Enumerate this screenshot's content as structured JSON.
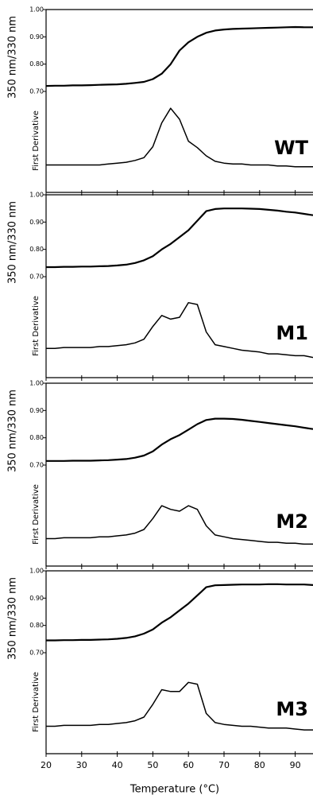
{
  "chart_data": [
    {
      "type": "line",
      "label": "WT",
      "ylabel": "350 nm/330 nm",
      "y2label": "First Derivative",
      "x": [
        20,
        22.5,
        25,
        27.5,
        30,
        32.5,
        35,
        37.5,
        40,
        42.5,
        45,
        47.5,
        50,
        52.5,
        55,
        57.5,
        60,
        62.5,
        65,
        67.5,
        70,
        72.5,
        75,
        77.5,
        80,
        82.5,
        85,
        87.5,
        90,
        92.5,
        95
      ],
      "xlim": [
        20,
        95
      ],
      "xticks": [
        20,
        30,
        40,
        50,
        60,
        70,
        80,
        90
      ],
      "ylim": [
        0.33,
        1.0
      ],
      "yticks": [
        {
          "value": 0.7,
          "label": "0.70"
        },
        {
          "value": 0.8,
          "label": "0.80"
        },
        {
          "value": 0.9,
          "label": "0.90"
        },
        {
          "value": 1.0,
          "label": "1.00"
        }
      ],
      "y2lim": [
        0,
        1
      ],
      "series": [
        {
          "color": "#000000",
          "values": [
            0.72,
            0.721,
            0.721,
            0.722,
            0.722,
            0.723,
            0.724,
            0.725,
            0.726,
            0.728,
            0.731,
            0.735,
            0.745,
            0.765,
            0.8,
            0.85,
            0.88,
            0.9,
            0.915,
            0.923,
            0.927,
            0.929,
            0.93,
            0.931,
            0.932,
            0.933,
            0.934,
            0.935,
            0.936,
            0.935,
            0.935
          ]
        },
        {
          "color": "#000000",
          "axis": "y2",
          "values": [
            0.15,
            0.15,
            0.15,
            0.15,
            0.15,
            0.15,
            0.15,
            0.155,
            0.16,
            0.165,
            0.175,
            0.19,
            0.25,
            0.38,
            0.46,
            0.4,
            0.28,
            0.245,
            0.2,
            0.17,
            0.16,
            0.155,
            0.155,
            0.15,
            0.15,
            0.15,
            0.145,
            0.145,
            0.14,
            0.14,
            0.14
          ]
        }
      ]
    },
    {
      "type": "line",
      "label": "M1",
      "ylabel": "350 nm/330 nm",
      "y2label": "First Derivative",
      "x": [
        20,
        22.5,
        25,
        27.5,
        30,
        32.5,
        35,
        37.5,
        40,
        42.5,
        45,
        47.5,
        50,
        52.5,
        55,
        57.5,
        60,
        62.5,
        65,
        67.5,
        70,
        72.5,
        75,
        77.5,
        80,
        82.5,
        85,
        87.5,
        90,
        92.5,
        95
      ],
      "xlim": [
        20,
        95
      ],
      "xticks": [
        20,
        30,
        40,
        50,
        60,
        70,
        80,
        90
      ],
      "ylim": [
        0.33,
        1.0
      ],
      "yticks": [
        {
          "value": 0.7,
          "label": "0.70"
        },
        {
          "value": 0.8,
          "label": "0.80"
        },
        {
          "value": 0.9,
          "label": "0.90"
        },
        {
          "value": 1.0,
          "label": "1.00"
        }
      ],
      "y2lim": [
        0,
        1
      ],
      "series": [
        {
          "color": "#000000",
          "values": [
            0.735,
            0.735,
            0.736,
            0.736,
            0.737,
            0.737,
            0.738,
            0.739,
            0.741,
            0.744,
            0.75,
            0.76,
            0.775,
            0.8,
            0.82,
            0.845,
            0.87,
            0.905,
            0.94,
            0.948,
            0.95,
            0.95,
            0.95,
            0.949,
            0.948,
            0.945,
            0.942,
            0.938,
            0.935,
            0.93,
            0.925
          ]
        },
        {
          "color": "#000000",
          "axis": "y2",
          "values": [
            0.16,
            0.16,
            0.165,
            0.165,
            0.165,
            0.165,
            0.17,
            0.17,
            0.175,
            0.18,
            0.19,
            0.21,
            0.28,
            0.34,
            0.32,
            0.33,
            0.41,
            0.4,
            0.25,
            0.18,
            0.17,
            0.16,
            0.15,
            0.145,
            0.14,
            0.13,
            0.13,
            0.125,
            0.12,
            0.12,
            0.11
          ]
        }
      ]
    },
    {
      "type": "line",
      "label": "M2",
      "ylabel": "350 nm/330 nm",
      "y2label": "First Derivative",
      "x": [
        20,
        22.5,
        25,
        27.5,
        30,
        32.5,
        35,
        37.5,
        40,
        42.5,
        45,
        47.5,
        50,
        52.5,
        55,
        57.5,
        60,
        62.5,
        65,
        67.5,
        70,
        72.5,
        75,
        77.5,
        80,
        82.5,
        85,
        87.5,
        90,
        92.5,
        95
      ],
      "xlim": [
        20,
        95
      ],
      "xticks": [
        20,
        30,
        40,
        50,
        60,
        70,
        80,
        90
      ],
      "ylim": [
        0.33,
        1.0
      ],
      "yticks": [
        {
          "value": 0.7,
          "label": "0.70"
        },
        {
          "value": 0.8,
          "label": "0.80"
        },
        {
          "value": 0.9,
          "label": "0.90"
        },
        {
          "value": 1.0,
          "label": "1.00"
        }
      ],
      "y2lim": [
        0,
        1
      ],
      "series": [
        {
          "color": "#000000",
          "values": [
            0.715,
            0.715,
            0.715,
            0.716,
            0.716,
            0.716,
            0.717,
            0.718,
            0.72,
            0.722,
            0.727,
            0.735,
            0.75,
            0.775,
            0.795,
            0.81,
            0.83,
            0.85,
            0.865,
            0.87,
            0.87,
            0.869,
            0.866,
            0.862,
            0.858,
            0.854,
            0.85,
            0.846,
            0.842,
            0.837,
            0.832
          ]
        },
        {
          "color": "#000000",
          "axis": "y2",
          "values": [
            0.15,
            0.15,
            0.155,
            0.155,
            0.155,
            0.155,
            0.16,
            0.16,
            0.165,
            0.17,
            0.18,
            0.2,
            0.26,
            0.33,
            0.31,
            0.3,
            0.33,
            0.31,
            0.22,
            0.17,
            0.16,
            0.15,
            0.145,
            0.14,
            0.135,
            0.13,
            0.13,
            0.125,
            0.125,
            0.12,
            0.12
          ]
        }
      ]
    },
    {
      "type": "line",
      "label": "M3",
      "ylabel": "350 nm/330 nm",
      "y2label": "First Derivative",
      "xlabel": "Temperature (°C)",
      "x": [
        20,
        22.5,
        25,
        27.5,
        30,
        32.5,
        35,
        37.5,
        40,
        42.5,
        45,
        47.5,
        50,
        52.5,
        55,
        57.5,
        60,
        62.5,
        65,
        67.5,
        70,
        72.5,
        75,
        77.5,
        80,
        82.5,
        85,
        87.5,
        90,
        92.5,
        95
      ],
      "xlim": [
        20,
        95
      ],
      "xticks": [
        20,
        30,
        40,
        50,
        60,
        70,
        80,
        90
      ],
      "ylim": [
        0.33,
        1.0
      ],
      "yticks": [
        {
          "value": 0.7,
          "label": "0.70"
        },
        {
          "value": 0.8,
          "label": "0.80"
        },
        {
          "value": 0.9,
          "label": "0.90"
        },
        {
          "value": 1.0,
          "label": "1.00"
        }
      ],
      "y2lim": [
        0,
        1
      ],
      "series": [
        {
          "color": "#000000",
          "values": [
            0.745,
            0.745,
            0.746,
            0.746,
            0.747,
            0.747,
            0.748,
            0.749,
            0.751,
            0.754,
            0.76,
            0.77,
            0.785,
            0.81,
            0.83,
            0.855,
            0.88,
            0.91,
            0.94,
            0.947,
            0.948,
            0.949,
            0.95,
            0.95,
            0.95,
            0.951,
            0.951,
            0.95,
            0.95,
            0.95,
            0.948
          ]
        },
        {
          "color": "#000000",
          "axis": "y2",
          "values": [
            0.15,
            0.15,
            0.155,
            0.155,
            0.155,
            0.155,
            0.16,
            0.16,
            0.165,
            0.17,
            0.18,
            0.2,
            0.27,
            0.35,
            0.34,
            0.34,
            0.39,
            0.38,
            0.22,
            0.17,
            0.16,
            0.155,
            0.15,
            0.15,
            0.145,
            0.14,
            0.14,
            0.14,
            0.135,
            0.13,
            0.13
          ]
        }
      ]
    }
  ]
}
